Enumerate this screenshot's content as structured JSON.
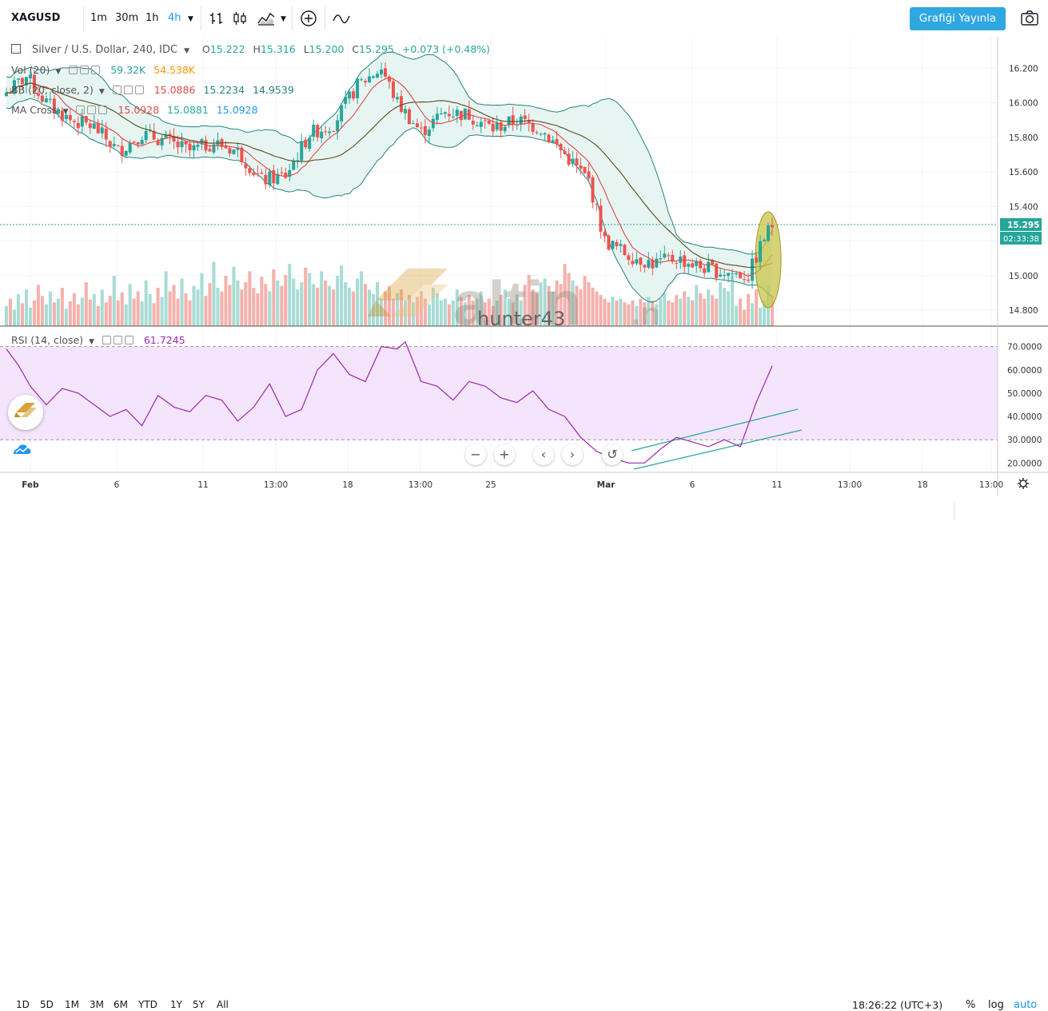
{
  "toolbar": {
    "symbol": "XAGUSD",
    "timeframes": [
      "1m",
      "30m",
      "1h",
      "4h"
    ],
    "active_timeframe": "4h",
    "publish_label": "Grafiği Yayınla"
  },
  "legend": {
    "title": "Silver / U.S. Dollar, 240, IDC",
    "ohlc": {
      "o_label": "O",
      "o": "15.222",
      "h_label": "H",
      "h": "15.316",
      "l_label": "L",
      "l": "15.200",
      "c_label": "C",
      "c": "15.295",
      "change": "+0.073 (+0.48%)"
    },
    "vol": {
      "label": "Vol (20)",
      "v1": "59.32K",
      "v2": "54.538K"
    },
    "bb": {
      "label": "BB (20, close, 2)",
      "v1": "15.0886",
      "v2": "15.2234",
      "v3": "14.9539"
    },
    "ma": {
      "label": "MA Cross",
      "v1": "15.0928",
      "v2": "15.0881",
      "v3": "15.0928"
    },
    "rsi": {
      "label": "RSI (14, close)",
      "v1": "61.7245"
    }
  },
  "price_axis": {
    "ticks": [
      "16.200",
      "16.000",
      "15.800",
      "15.600",
      "15.400",
      "15.200",
      "15.000",
      "14.800"
    ],
    "last_price": "15.295",
    "countdown": "02:33:38"
  },
  "rsi_axis": {
    "ticks": [
      "70.0000",
      "60.0000",
      "50.0000",
      "40.0000",
      "30.0000",
      "20.0000"
    ]
  },
  "time_axis": {
    "ticks": [
      {
        "label": "Feb",
        "bold": true
      },
      {
        "label": "6",
        "bold": false
      },
      {
        "label": "11",
        "bold": false
      },
      {
        "label": "13:00",
        "bold": false
      },
      {
        "label": "18",
        "bold": false
      },
      {
        "label": "13:00",
        "bold": false
      },
      {
        "label": "25",
        "bold": false
      },
      {
        "label": "Mar",
        "bold": true
      },
      {
        "label": "6",
        "bold": false
      },
      {
        "label": "11",
        "bold": false
      },
      {
        "label": "13:00",
        "bold": false
      },
      {
        "label": "18",
        "bold": false
      },
      {
        "label": "13:00",
        "bold": false
      }
    ]
  },
  "bottom": {
    "ranges": [
      "1D",
      "5D",
      "1M",
      "3M",
      "6M",
      "YTD",
      "1Y",
      "5Y",
      "All"
    ],
    "clock": "18:26:22 (UTC+3)",
    "percent": "%",
    "log": "log",
    "auto": "auto"
  },
  "watermark": {
    "brand": "altin",
    "user": "hunter43"
  },
  "colors": {
    "up": "#26a69a",
    "down": "#ef5350",
    "bb": "#26837a",
    "bb_fill": "#e8f5f3",
    "ma_fast": "#e04a44",
    "ma_slow": "#5d4a1a",
    "rsi_line": "#9c27b0",
    "rsi_band": "#f3e0fb",
    "accent": "#2196f3",
    "publish_bg": "#2fa7e0"
  },
  "chart_data": [
    {
      "type": "candlestick",
      "title": "Silver / U.S. Dollar, 240, IDC",
      "ylim": [
        14.75,
        16.28
      ],
      "x_range": [
        "Feb 1",
        "Mar 13"
      ],
      "close_path": [
        {
          "x": 0,
          "y": 16.06
        },
        {
          "x": 5,
          "y": 16.15
        },
        {
          "x": 10,
          "y": 16.0
        },
        {
          "x": 16,
          "y": 15.9
        },
        {
          "x": 22,
          "y": 15.86
        },
        {
          "x": 28,
          "y": 15.72
        },
        {
          "x": 34,
          "y": 15.82
        },
        {
          "x": 40,
          "y": 15.78
        },
        {
          "x": 46,
          "y": 15.72
        },
        {
          "x": 52,
          "y": 15.77
        },
        {
          "x": 58,
          "y": 15.72
        },
        {
          "x": 64,
          "y": 15.55
        },
        {
          "x": 70,
          "y": 15.58
        },
        {
          "x": 76,
          "y": 15.82
        },
        {
          "x": 82,
          "y": 15.88
        },
        {
          "x": 88,
          "y": 16.1
        },
        {
          "x": 94,
          "y": 16.2
        },
        {
          "x": 98,
          "y": 16.0
        },
        {
          "x": 104,
          "y": 15.83
        },
        {
          "x": 110,
          "y": 15.95
        },
        {
          "x": 116,
          "y": 15.93
        },
        {
          "x": 122,
          "y": 15.85
        },
        {
          "x": 128,
          "y": 15.9
        },
        {
          "x": 134,
          "y": 15.85
        },
        {
          "x": 140,
          "y": 15.7
        },
        {
          "x": 146,
          "y": 15.55
        },
        {
          "x": 150,
          "y": 15.2
        },
        {
          "x": 156,
          "y": 15.12
        },
        {
          "x": 162,
          "y": 15.07
        },
        {
          "x": 168,
          "y": 15.1
        },
        {
          "x": 174,
          "y": 15.05
        },
        {
          "x": 180,
          "y": 15.02
        },
        {
          "x": 186,
          "y": 15.0
        },
        {
          "x": 190,
          "y": 15.22
        },
        {
          "x": 192,
          "y": 15.295
        }
      ],
      "volume": [
        22,
        30,
        18,
        35,
        25,
        40,
        20,
        28,
        45,
        33,
        24,
        38,
        26,
        30,
        42,
        19,
        27,
        36,
        24,
        31,
        48,
        29,
        35,
        22,
        40,
        26,
        33,
        55,
        28,
        37,
        24,
        46,
        30,
        38,
        27,
        50,
        35,
        25,
        42,
        32,
        60,
        38,
        45,
        30,
        52,
        36,
        28,
        44,
        40,
        58,
        33,
        47,
        70,
        42,
        38,
        55,
        45,
        65,
        50,
        40,
        48,
        60,
        42,
        36,
        54,
        46,
        38,
        62,
        50,
        44,
        56,
        68,
        52,
        40,
        48,
        64,
        58,
        46,
        42,
        60,
        50,
        44,
        40,
        55,
        66,
        48,
        42,
        38,
        52,
        60,
        46,
        40,
        35,
        48,
        30,
        38,
        44,
        30,
        36,
        40,
        28,
        34,
        26,
        32,
        38,
        30,
        24,
        42,
        36,
        28,
        30,
        24,
        28,
        40,
        32,
        26,
        34,
        28,
        30,
        38,
        26,
        30,
        22,
        28,
        34,
        40,
        30,
        26,
        35,
        28,
        45,
        56,
        40,
        36,
        48,
        52,
        44,
        38,
        50,
        46,
        68,
        58,
        50,
        44,
        40,
        55,
        48,
        42,
        38,
        34,
        30,
        26,
        32,
        28,
        30,
        26,
        24,
        28,
        22,
        30,
        26,
        32,
        28,
        24,
        30,
        36,
        28,
        26,
        34,
        30,
        38,
        32,
        28,
        45,
        36,
        30,
        40,
        34,
        30,
        48,
        42,
        38,
        55
      ],
      "volume_unit": "K",
      "volume_last": [
        59.32,
        54.538
      ]
    },
    {
      "type": "line",
      "title": "RSI (14, close)",
      "ylim": [
        16,
        74
      ],
      "bands": [
        30,
        70
      ],
      "series": [
        {
          "x": [
            0,
            3,
            6,
            10,
            14,
            18,
            22,
            26,
            30,
            34,
            38,
            42,
            46,
            50,
            54,
            58,
            62,
            66,
            70,
            74,
            78,
            82,
            86,
            90,
            94,
            98,
            100,
            104,
            108,
            112,
            116,
            120,
            124,
            128,
            132,
            136,
            140,
            144,
            148,
            152,
            156,
            160,
            164,
            168,
            172,
            176,
            180,
            184,
            188,
            192
          ],
          "values": [
            69,
            62,
            53,
            45,
            52,
            50,
            45,
            40,
            43,
            36,
            49,
            44,
            42,
            49,
            47,
            38,
            44,
            54,
            40,
            43,
            60,
            67,
            58,
            55,
            70,
            69,
            72,
            55,
            53,
            47,
            55,
            53,
            48,
            46,
            51,
            43,
            40,
            31,
            25,
            22,
            20,
            20,
            26,
            31,
            29,
            27,
            30,
            27,
            46,
            61.72
          ]
        }
      ]
    }
  ]
}
